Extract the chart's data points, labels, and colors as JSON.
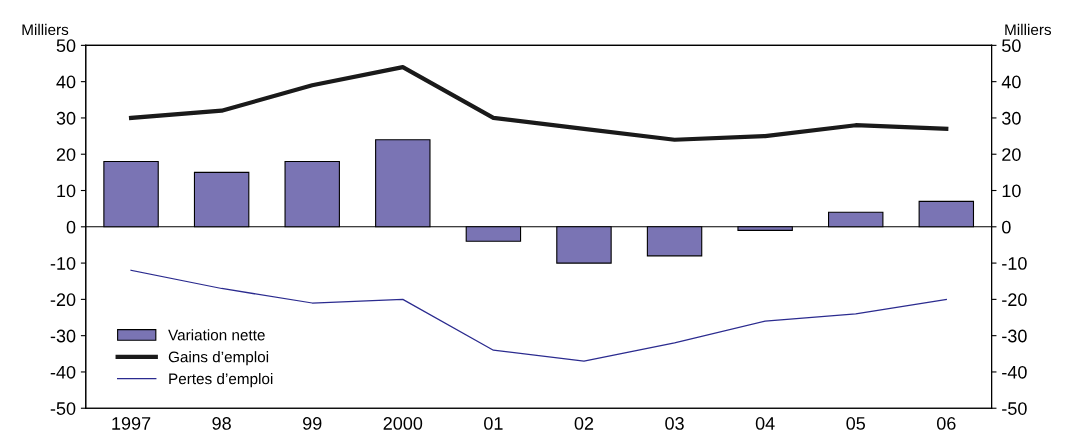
{
  "chart_data": {
    "type": "bar",
    "categories": [
      "1997",
      "98",
      "99",
      "2000",
      "01",
      "02",
      "03",
      "04",
      "05",
      "06"
    ],
    "series": [
      {
        "name": "Variation nette",
        "color": "#7a74b4",
        "values": [
          18,
          15,
          18,
          24,
          -4,
          -10,
          -8,
          -1,
          4,
          7
        ]
      },
      {
        "name": "Gains d’emploi",
        "type": "line",
        "color": "#1a1a1a",
        "values": [
          30,
          32,
          39,
          44,
          30,
          27,
          24,
          25,
          28,
          27
        ]
      },
      {
        "name": "Pertes d’emploi",
        "type": "line",
        "color": "#2b2b8f",
        "values": [
          -12,
          -17,
          -21,
          -20,
          -34,
          -37,
          -32,
          -26,
          -24,
          -20
        ]
      }
    ],
    "ylabel": "Milliers",
    "y2label": "Milliers",
    "ylim": [
      -50,
      50
    ],
    "yticks": [
      -50,
      -40,
      -30,
      -20,
      -10,
      0,
      10,
      20,
      30,
      40,
      50
    ],
    "y2lim": [
      -50,
      50
    ],
    "y2ticks": [
      -50,
      -40,
      -30,
      -20,
      -10,
      0,
      10,
      20,
      30,
      40,
      50
    ],
    "ref_lines": [
      {
        "axis": "y",
        "value": 0,
        "color": "#000000"
      }
    ],
    "grid": false,
    "legend": "bottom left",
    "marker": "none",
    "line_style": "solid"
  }
}
